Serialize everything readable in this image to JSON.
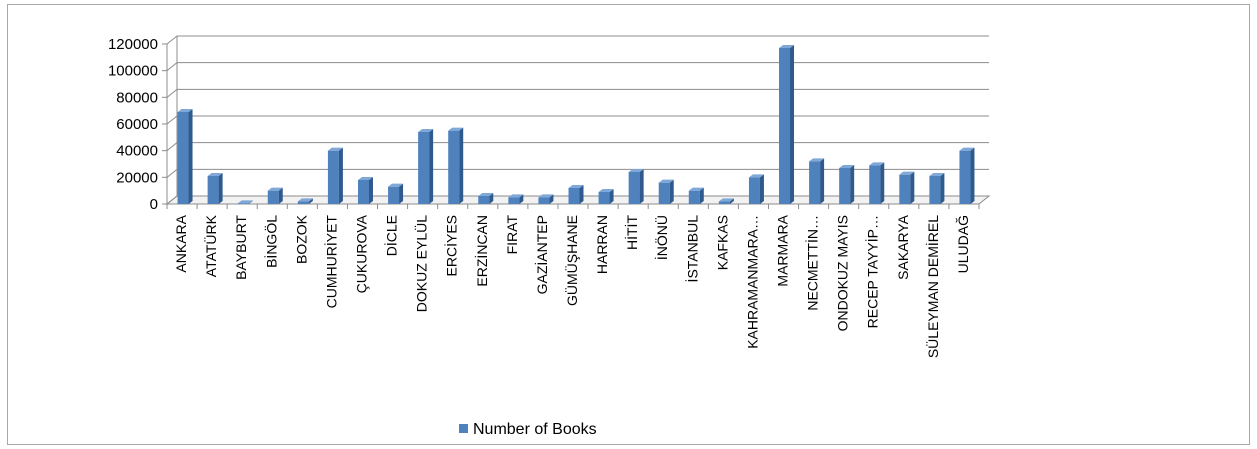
{
  "chart_data": {
    "type": "bar",
    "title": "",
    "xlabel": "",
    "ylabel": "",
    "ylim": [
      0,
      120000
    ],
    "yticks": [
      0,
      20000,
      40000,
      60000,
      80000,
      100000,
      120000
    ],
    "grid": true,
    "legend_position": "bottom",
    "bar_color": "#4f81bd",
    "categories": [
      "ANKARA",
      "ATATÜRK",
      "BAYBURT",
      "BİNGÖL",
      "BOZOK",
      "CUMHURİYET",
      "ÇUKUROVA",
      "DİCLE",
      "DOKUZ EYLÜL",
      "ERCİYES",
      "ERZİNCAN",
      "FIRAT",
      "GAZİANTEP",
      "GÜMÜŞHANE",
      "HARRAN",
      "HİTİT",
      "İNÖNÜ",
      "İSTANBUL",
      "KAFKAS",
      "KAHRAMANMARA…",
      "MARMARA",
      "NECMETTİN…",
      "ONDOKUZ MAYIS",
      "RECEP TAYYİP…",
      "SAKARYA",
      "SÜLEYMAN DEMİREL",
      "ULUDAĞ"
    ],
    "series": [
      {
        "name": "Number of Books",
        "values": [
          69000,
          21000,
          500,
          10000,
          2000,
          40000,
          18000,
          13000,
          54000,
          55000,
          6000,
          5000,
          5000,
          12000,
          9000,
          24000,
          16000,
          10000,
          2000,
          20000,
          117000,
          32000,
          27000,
          29000,
          22000,
          21000,
          40000
        ]
      }
    ]
  }
}
